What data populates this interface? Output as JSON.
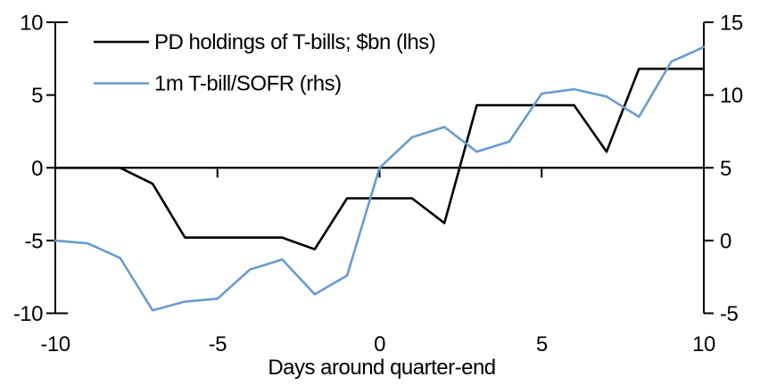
{
  "chart_data": {
    "type": "line",
    "title": "",
    "xlabel": "Days around quarter-end",
    "x": [
      -10,
      -9,
      -8,
      -7,
      -6,
      -5,
      -4,
      -3,
      -2,
      -1,
      0,
      1,
      2,
      3,
      4,
      5,
      6,
      7,
      8,
      9,
      10
    ],
    "series": [
      {
        "name": "PD holdings of T-bills; $bn (lhs)",
        "axis": "lhs",
        "color": "#000000",
        "values": [
          0,
          0,
          0,
          -1.1,
          -4.8,
          -4.8,
          -4.8,
          -4.8,
          -5.6,
          -2.1,
          -2.1,
          -2.1,
          -3.8,
          4.3,
          4.3,
          4.3,
          4.3,
          1.1,
          6.8,
          6.8,
          6.8
        ]
      },
      {
        "name": "1m T-bill/SOFR (rhs)",
        "axis": "rhs",
        "color": "#699BD1",
        "values": [
          0,
          -0.2,
          -1.2,
          -4.8,
          -4.2,
          -4.0,
          -2.0,
          -1.3,
          -3.7,
          -2.4,
          5.0,
          7.1,
          7.8,
          6.1,
          6.8,
          10.1,
          10.4,
          9.9,
          8.5,
          12.3,
          13.3
        ]
      }
    ],
    "left_axis": {
      "ticks": [
        10,
        5,
        0,
        -5,
        -10
      ],
      "range": [
        -10,
        10
      ]
    },
    "right_axis": {
      "ticks": [
        15,
        10,
        5,
        0,
        -5
      ],
      "range": [
        -5,
        15
      ]
    },
    "x_axis": {
      "ticks": [
        -10,
        -5,
        0,
        5,
        10
      ],
      "zero_line_ticks": [
        -5,
        0,
        5
      ],
      "range": [
        -10,
        10
      ]
    },
    "legend_position": "top-left",
    "grid": "off"
  }
}
